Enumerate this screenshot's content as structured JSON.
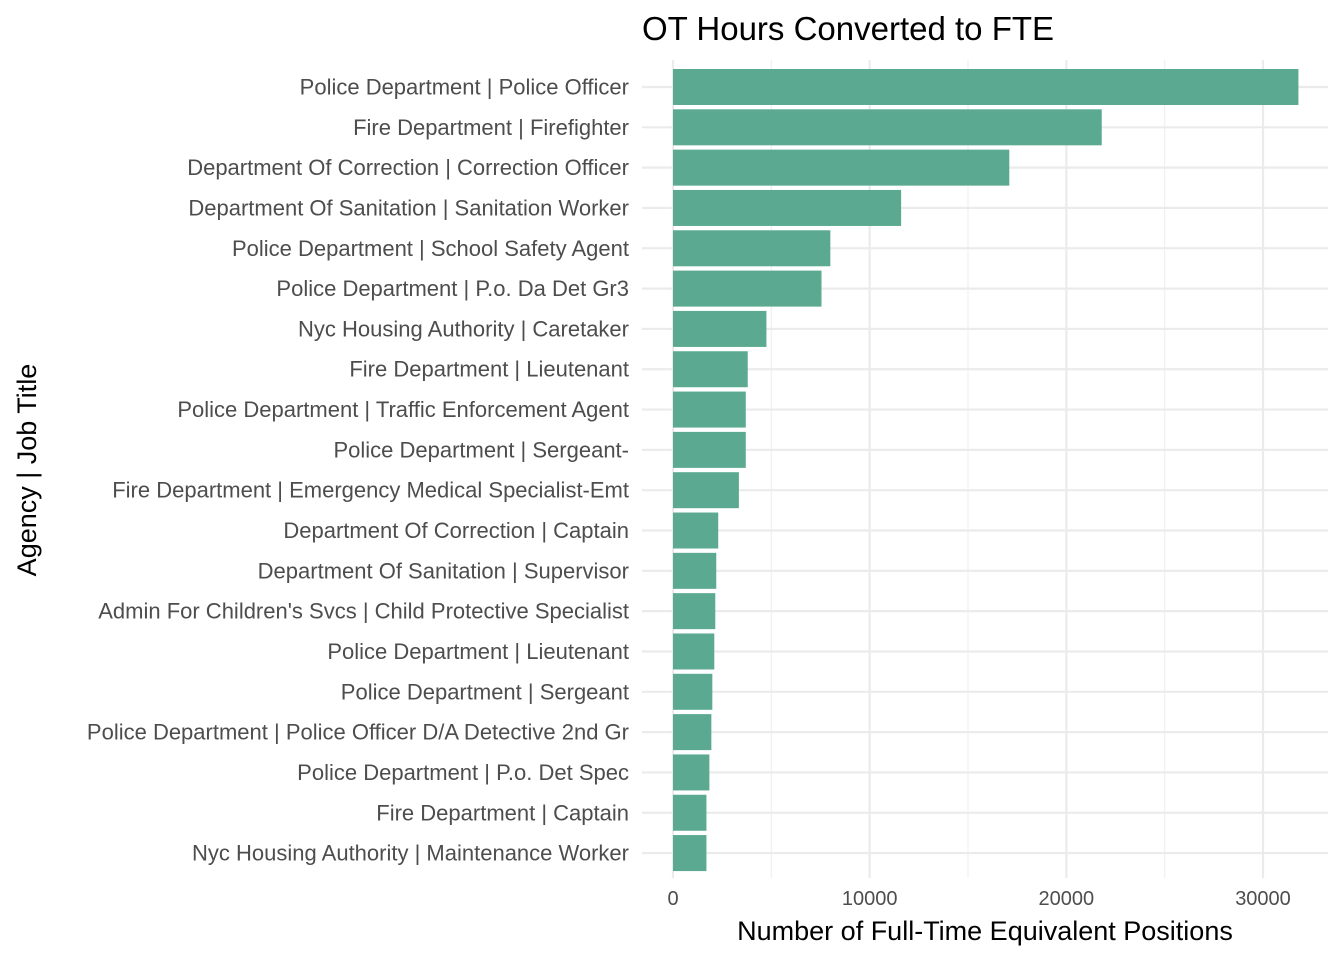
{
  "chart_data": {
    "type": "bar",
    "orientation": "horizontal",
    "title": "OT Hours Converted to FTE",
    "xlabel": "Number of Full-Time Equivalent Positions",
    "ylabel": "Agency | Job Title",
    "xlim": [
      0,
      32000
    ],
    "x_ticks": [
      "0",
      "10000",
      "20000",
      "30000"
    ],
    "grid": true,
    "bar_color": "#5aa990",
    "categories": [
      "Police Department | Police Officer",
      "Fire Department | Firefighter",
      "Department Of Correction | Correction Officer",
      "Department Of Sanitation | Sanitation Worker",
      "Police Department | School Safety Agent",
      "Police Department | P.o. Da Det Gr3",
      "Nyc Housing Authority | Caretaker",
      "Fire Department | Lieutenant",
      "Police Department | Traffic Enforcement Agent",
      "Police Department | Sergeant-",
      "Fire Department | Emergency Medical Specialist-Emt",
      "Department Of Correction | Captain",
      "Department Of Sanitation | Supervisor",
      "Admin For Children's Svcs | Child Protective Specialist",
      "Police Department | Lieutenant",
      "Police Department | Sergeant",
      "Police Department | Police Officer D/A Detective 2nd Gr",
      "Police Department | P.o. Det Spec",
      "Fire Department | Captain",
      "Nyc Housing Authority | Maintenance Worker"
    ],
    "values": [
      31800,
      21800,
      17100,
      11600,
      8000,
      7550,
      4750,
      3800,
      3700,
      3700,
      3350,
      2300,
      2200,
      2150,
      2100,
      2000,
      1950,
      1850,
      1700,
      1700
    ]
  }
}
